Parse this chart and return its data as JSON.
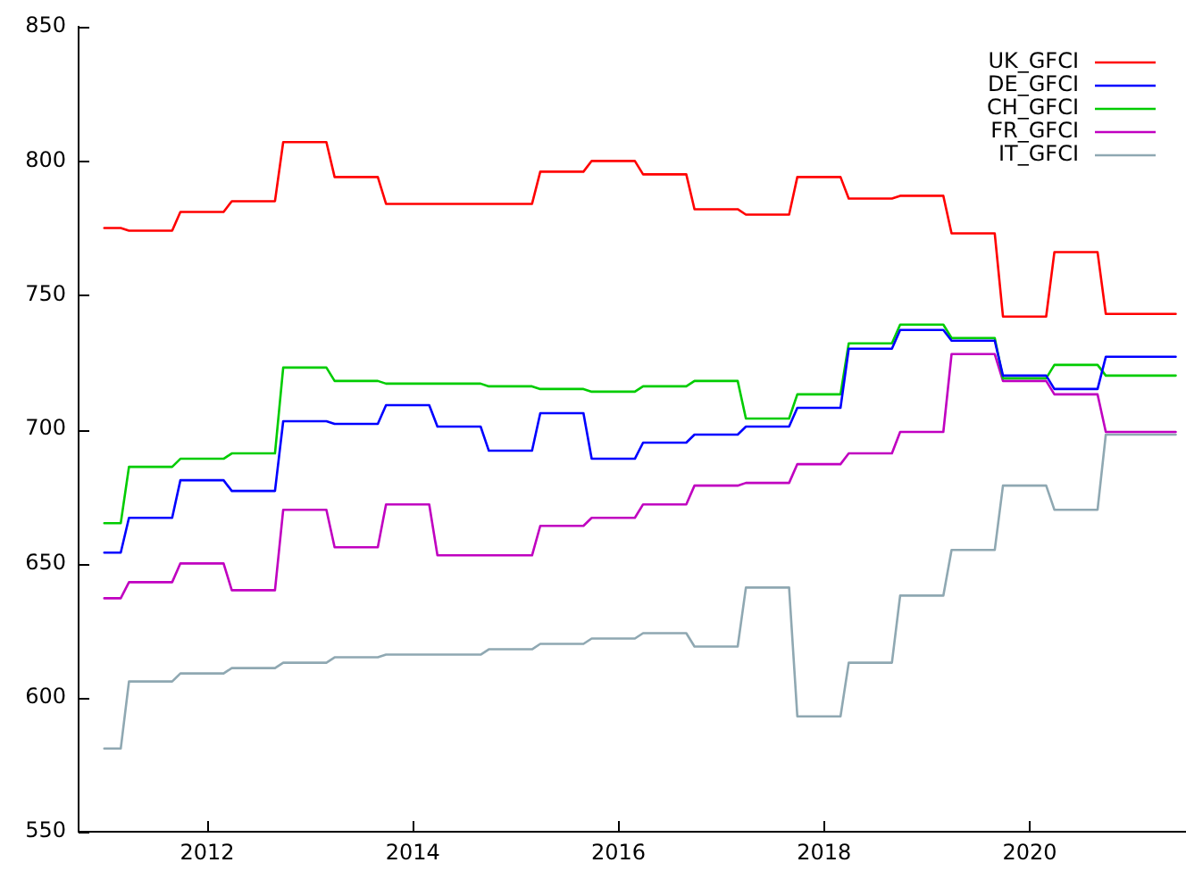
{
  "chart_data": {
    "type": "line",
    "x": [
      2011.0,
      2011.16,
      2011.24,
      2011.66,
      2011.74,
      2012.16,
      2012.24,
      2012.66,
      2012.74,
      2013.16,
      2013.24,
      2013.66,
      2013.74,
      2014.16,
      2014.24,
      2014.66,
      2014.74,
      2015.16,
      2015.24,
      2015.66,
      2015.74,
      2016.16,
      2016.24,
      2016.66,
      2016.74,
      2017.16,
      2017.24,
      2017.66,
      2017.74,
      2018.16,
      2018.24,
      2018.66,
      2018.74,
      2019.16,
      2019.24,
      2019.66,
      2019.74,
      2020.16,
      2020.24,
      2020.66,
      2020.74,
      2021.42
    ],
    "series": [
      {
        "name": "UK_GFCI",
        "color": "#ff0000",
        "values": [
          775,
          775,
          774,
          774,
          781,
          781,
          785,
          785,
          807,
          807,
          794,
          794,
          784,
          784,
          784,
          784,
          784,
          784,
          796,
          796,
          800,
          800,
          795,
          795,
          782,
          782,
          780,
          780,
          794,
          794,
          786,
          786,
          787,
          787,
          773,
          773,
          742,
          742,
          766,
          766,
          743,
          743
        ]
      },
      {
        "name": "DE_GFCI",
        "color": "#0000ff",
        "values": [
          654,
          654,
          667,
          667,
          681,
          681,
          677,
          677,
          703,
          703,
          702,
          702,
          709,
          709,
          701,
          701,
          692,
          692,
          706,
          706,
          689,
          689,
          695,
          695,
          698,
          698,
          701,
          701,
          708,
          708,
          730,
          730,
          737,
          737,
          733,
          733,
          720,
          720,
          715,
          715,
          727,
          727
        ]
      },
      {
        "name": "CH_GFCI",
        "color": "#00cc00",
        "values": [
          665,
          665,
          686,
          686,
          689,
          689,
          691,
          691,
          723,
          723,
          718,
          718,
          717,
          717,
          717,
          717,
          716,
          716,
          715,
          715,
          714,
          714,
          716,
          716,
          718,
          718,
          704,
          704,
          713,
          713,
          732,
          732,
          739,
          739,
          734,
          734,
          719,
          719,
          724,
          724,
          720,
          720
        ]
      },
      {
        "name": "FR_GFCI",
        "color": "#c000c0",
        "values": [
          637,
          637,
          643,
          643,
          650,
          650,
          640,
          640,
          670,
          670,
          656,
          656,
          672,
          672,
          653,
          653,
          653,
          653,
          664,
          664,
          667,
          667,
          672,
          672,
          679,
          679,
          680,
          680,
          687,
          687,
          691,
          691,
          699,
          699,
          728,
          728,
          718,
          718,
          713,
          713,
          699,
          699
        ]
      },
      {
        "name": "IT_GFCI",
        "color": "#8fa8b2",
        "values": [
          581,
          581,
          606,
          606,
          609,
          609,
          611,
          611,
          613,
          613,
          615,
          615,
          616,
          616,
          616,
          616,
          618,
          618,
          620,
          620,
          622,
          622,
          624,
          624,
          619,
          619,
          641,
          641,
          593,
          593,
          613,
          613,
          638,
          638,
          655,
          655,
          679,
          679,
          670,
          670,
          698,
          698
        ]
      }
    ],
    "xlim": [
      2010.75,
      2021.52
    ],
    "ylim": [
      550,
      850
    ],
    "xticks": [
      2012,
      2014,
      2016,
      2018,
      2020
    ],
    "yticks": [
      550,
      600,
      650,
      700,
      750,
      800,
      850
    ],
    "legend": "top right",
    "line_style": "solid"
  }
}
